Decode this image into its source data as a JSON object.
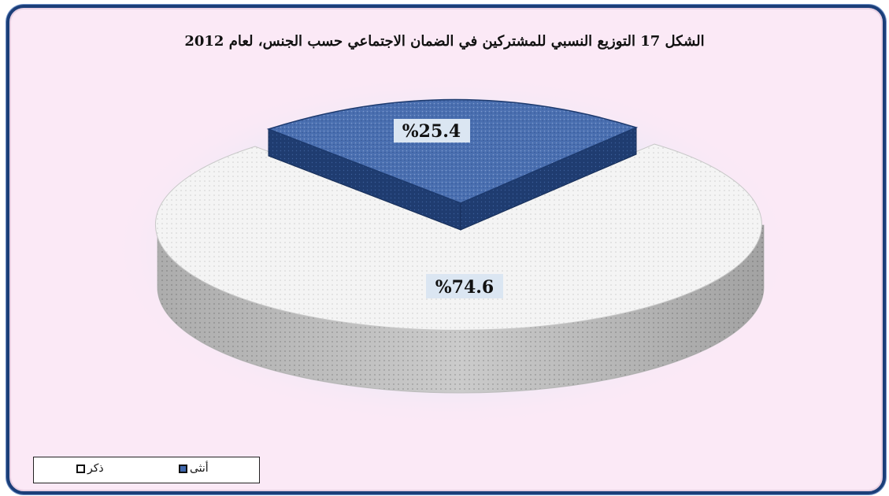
{
  "chart_data": {
    "type": "pie",
    "title": "الشكل 17 التوزيع النسبي للمشتركين في الضمان الاجتماعي حسب الجنس، لعام 2012",
    "slices": [
      {
        "name": "أنثى",
        "value": 25.4,
        "label": "%25.4",
        "color": "#2f5fa8"
      },
      {
        "name": "ذكر",
        "value": 74.6,
        "label": "%74.6",
        "color": "#f2f2f2"
      }
    ],
    "legend": {
      "placement": "bottom-left"
    }
  },
  "legend_items": {
    "female": "أنثى",
    "male": "ذكر"
  }
}
